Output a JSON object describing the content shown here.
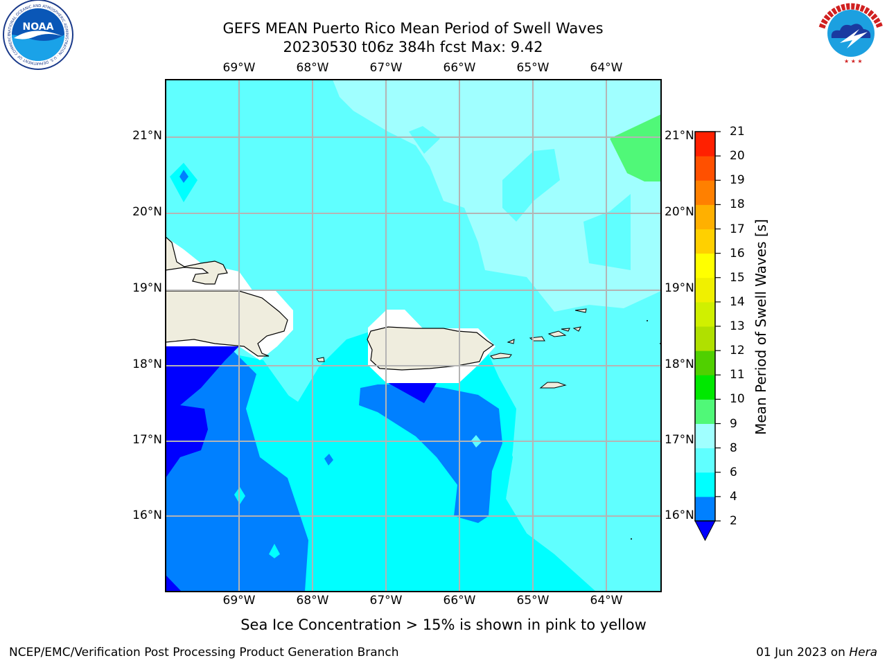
{
  "title_line1": "GEFS MEAN Puerto Rico Mean Period of Swell Waves",
  "title_line2": "20230530 t06z 384h fcst   Max: 9.42",
  "map": {
    "lon_labels": [
      "69°W",
      "68°W",
      "67°W",
      "66°W",
      "65°W",
      "64°W"
    ],
    "lat_labels": [
      "21°N",
      "20°N",
      "19°N",
      "18°N",
      "17°N",
      "16°N"
    ],
    "lon_range": [
      -69.98,
      -63.25
    ],
    "lat_range": [
      15.05,
      21.75
    ]
  },
  "colorbar": {
    "label": "Mean Period of Swell Waves [s]",
    "ticks": [
      "2",
      "4",
      "6",
      "8",
      "9",
      "10",
      "11",
      "12",
      "13",
      "14",
      "15",
      "16",
      "17",
      "18",
      "19",
      "20",
      "21"
    ],
    "colors": [
      "#0080ff",
      "#00ffff",
      "#60ffff",
      "#a0ffff",
      "#50f878",
      "#00e800",
      "#50d000",
      "#b0e000",
      "#d0f000",
      "#f0f000",
      "#ffff00",
      "#ffd000",
      "#ffb000",
      "#ff8000",
      "#ff5000",
      "#ff2000",
      "#ff0000"
    ],
    "under_color": "#0000ff"
  },
  "note": "Sea Ice Concentration > 15% is shown in pink to yellow",
  "credit": "NCEP/EMC/Verification Post Processing Product Generation Branch",
  "date_prefix": "01 Jun 2023 on ",
  "date_host": "Hera",
  "logos": {
    "noaa_text": "NOAA",
    "noaa_ring": "NATIONAL OCEANIC AND ATMOSPHERIC ADMINISTRATION · U.S. DEPARTMENT OF COMMERCE",
    "nws_ring": "NATIONAL WEATHER SERVICE"
  }
}
